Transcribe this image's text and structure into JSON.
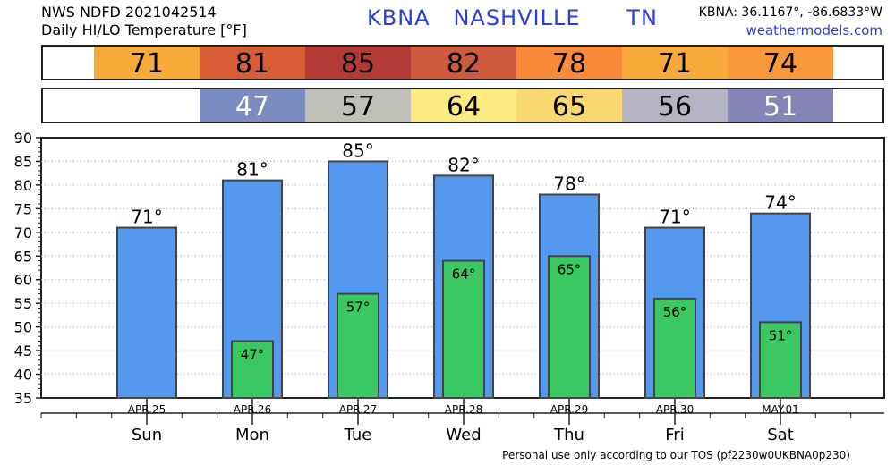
{
  "header": {
    "line1": "NWS NDFD 2021042514",
    "line2": "Daily HI/LO Temperature [°F]",
    "station": "KBNA   NASHVILLE      TN",
    "coords": "KBNA: 36.1167°, -86.6833°W",
    "site": "weathermodels.com"
  },
  "footer": "Personal use only according to our TOS (pf2230w0UKBNA0p230)",
  "colors": {
    "hi_bar": "#5599ee",
    "lo_bar": "#3cc860",
    "hi_cells": [
      "#f8aa3a",
      "#d85e38",
      "#b43a38",
      "#d05a3e",
      "#f88a3a",
      "#f8aa3a",
      "#f8983a"
    ],
    "lo_cells": [
      null,
      "#7b8cc0",
      "#c0c0b8",
      "#faea80",
      "#fad870",
      "#b4b4c4",
      "#8484b8"
    ],
    "lo_text": [
      null,
      "#ffffff",
      "#000000",
      "#000000",
      "#000000",
      "#000000",
      "#ffffff"
    ]
  },
  "chart_data": {
    "type": "bar",
    "categories": [
      "Sun",
      "Mon",
      "Tue",
      "Wed",
      "Thu",
      "Fri",
      "Sat"
    ],
    "dates": [
      "APR.25",
      "APR.26",
      "APR.27",
      "APR.28",
      "APR.29",
      "APR.30",
      "MAY.01"
    ],
    "series": [
      {
        "values": [
          71,
          81,
          85,
          82,
          78,
          71,
          74
        ]
      },
      {
        "values": [
          null,
          47,
          57,
          64,
          65,
          56,
          51
        ]
      }
    ],
    "hi_labels": [
      "71°",
      "81°",
      "85°",
      "82°",
      "78°",
      "71°",
      "74°"
    ],
    "lo_labels": [
      null,
      "47°",
      "57°",
      "64°",
      "65°",
      "56°",
      "51°"
    ],
    "hi_cell_text": [
      "71",
      "81",
      "85",
      "82",
      "78",
      "71",
      "74"
    ],
    "lo_cell_text": [
      null,
      "47",
      "57",
      "64",
      "65",
      "56",
      "51"
    ],
    "ylim": [
      35,
      90
    ],
    "yticks": [
      35,
      40,
      45,
      50,
      55,
      60,
      65,
      70,
      75,
      80,
      85,
      90
    ],
    "grid": true
  }
}
